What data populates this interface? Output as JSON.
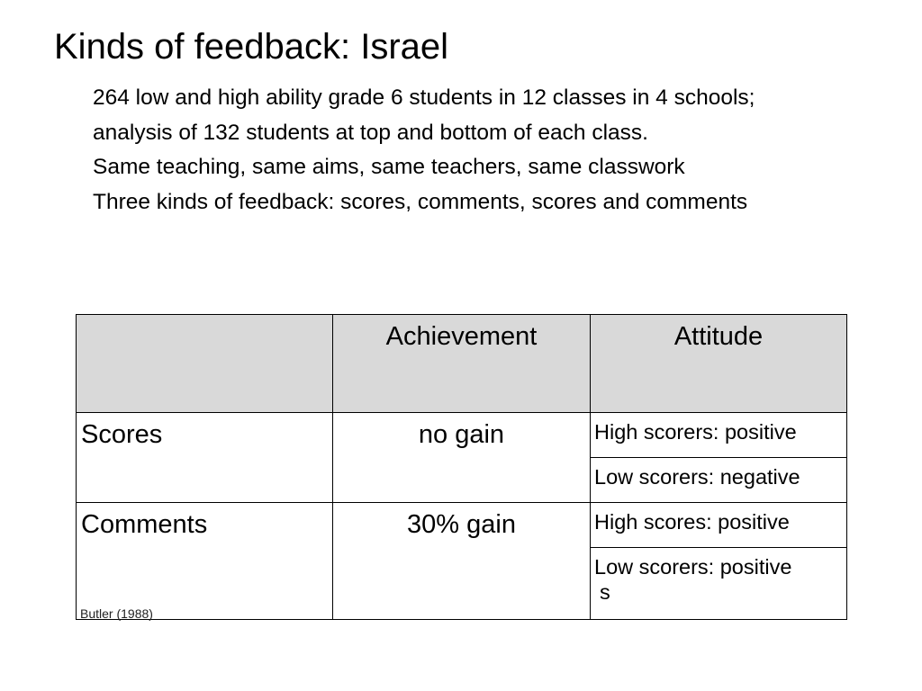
{
  "slide": {
    "title": "Kinds of feedback: Israel",
    "paragraphs": [
      "264 low and high ability grade 6 students in 12 classes in 4 schools; analysis of 132 students at top and bottom of each class.",
      "Same teaching, same aims, same teachers, same classwork",
      "Three kinds of feedback: scores, comments, scores and comments"
    ]
  },
  "table": {
    "headers": {
      "corner": "",
      "achievement": "Achievement",
      "attitude": "Attitude"
    },
    "rows": [
      {
        "label": "Scores",
        "achievement": "no gain",
        "attitude_high": "High scorers: positive",
        "attitude_low": "Low scorers: negative"
      },
      {
        "label": "Comments",
        "achievement": "30% gain",
        "attitude_high": "High scores: positive",
        "attitude_low": "Low scorers: positive",
        "attitude_low_wrap": "s"
      }
    ]
  },
  "citation": "Butler (1988)",
  "colors": {
    "header_fill": "#d9d9d9",
    "border": "#000000",
    "background": "#ffffff"
  }
}
